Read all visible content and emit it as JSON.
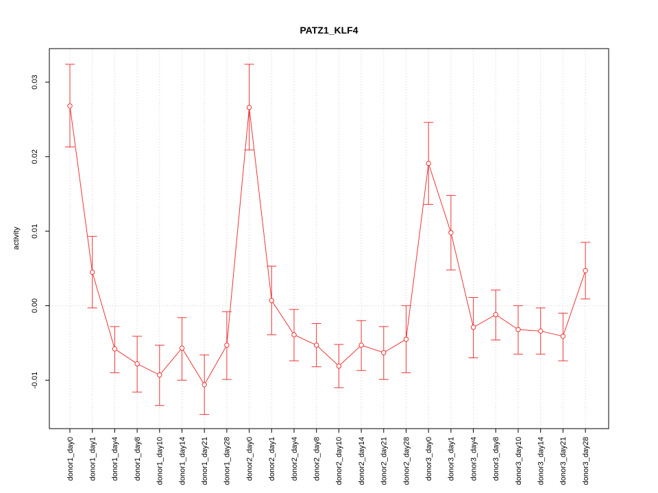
{
  "chart_data": {
    "type": "line",
    "title": "PATZ1_KLF4",
    "xlabel": "",
    "ylabel": "activity",
    "ylim": [
      -0.0165,
      0.0345
    ],
    "yticks": [
      -0.01,
      0.0,
      0.01,
      0.02,
      0.03
    ],
    "ytick_labels": [
      "-0.01",
      "0.00",
      "0.01",
      "0.02",
      "0.03"
    ],
    "grid": true,
    "color": "#ee3333",
    "categories": [
      "donor1_day0",
      "donor1_day1",
      "donor1_day4",
      "donor1_day8",
      "donor1_day10",
      "donor1_day14",
      "donor1_day21",
      "donor1_day28",
      "donor2_day0",
      "donor2_day1",
      "donor2_day4",
      "donor2_day8",
      "donor2_day10",
      "donor2_day14",
      "donor2_day21",
      "donor2_day28",
      "donor3_day0",
      "donor3_day1",
      "donor3_day4",
      "donor3_day8",
      "donor3_day10",
      "donor3_day14",
      "donor3_day21",
      "donor3_day28"
    ],
    "values": [
      0.0268,
      0.0045,
      -0.0058,
      -0.0078,
      -0.0093,
      -0.0057,
      -0.0106,
      -0.0053,
      0.0266,
      0.0007,
      -0.0039,
      -0.0053,
      -0.0081,
      -0.0053,
      -0.0063,
      -0.0045,
      0.0191,
      0.0098,
      -0.0029,
      -0.0012,
      -0.0032,
      -0.0034,
      -0.0041,
      0.0047
    ],
    "error_low": [
      0.0213,
      -0.0003,
      -0.009,
      -0.0116,
      -0.0134,
      -0.01,
      -0.0146,
      -0.0099,
      0.0209,
      -0.0039,
      -0.0074,
      -0.0082,
      -0.011,
      -0.0087,
      -0.0099,
      -0.009,
      0.0136,
      0.0048,
      -0.007,
      -0.0046,
      -0.0065,
      -0.0065,
      -0.0074,
      0.0009
    ],
    "error_high": [
      0.0324,
      0.0093,
      -0.0028,
      -0.0041,
      -0.0053,
      -0.0016,
      -0.0066,
      -0.0008,
      0.0324,
      0.0053,
      -0.0005,
      -0.0024,
      -0.0052,
      -0.002,
      -0.0028,
      0.0,
      0.0246,
      0.0148,
      0.0011,
      0.0021,
      0.0,
      -0.0003,
      -0.001,
      0.0085
    ]
  }
}
